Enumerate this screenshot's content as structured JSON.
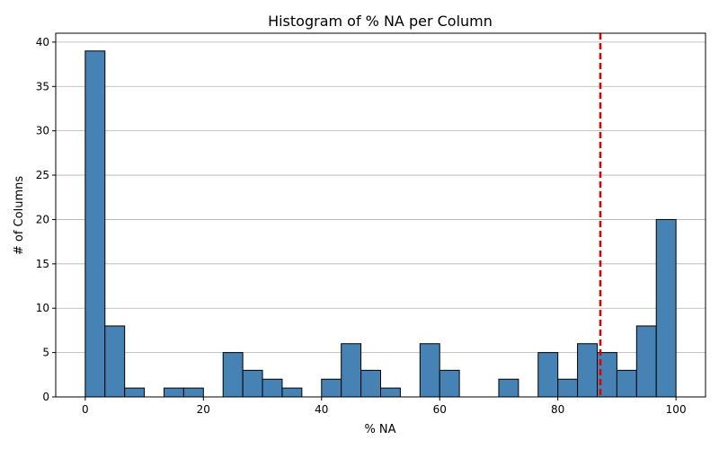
{
  "chart_data": {
    "type": "bar",
    "title": "Histogram of % NA per Column",
    "xlabel": "% NA",
    "ylabel": "# of Columns",
    "xlim": [
      -5,
      105
    ],
    "ylim": [
      0,
      41
    ],
    "xticks": [
      0,
      20,
      40,
      60,
      80,
      100
    ],
    "yticks": [
      0,
      5,
      10,
      15,
      20,
      25,
      30,
      35,
      40
    ],
    "grid": "horizontal",
    "bin_width": 3.3333,
    "bin_starts": [
      0,
      3.3333,
      6.6667,
      10,
      13.3333,
      16.6667,
      20,
      23.3333,
      26.6667,
      30,
      33.3333,
      36.6667,
      40,
      43.3333,
      46.6667,
      50,
      53.3333,
      56.6667,
      60,
      63.3333,
      66.6667,
      70,
      73.3333,
      76.6667,
      80,
      83.3333,
      86.6667,
      90,
      93.3333,
      96.6667
    ],
    "values": [
      39,
      8,
      1,
      0,
      1,
      1,
      0,
      5,
      3,
      2,
      1,
      0,
      2,
      6,
      3,
      1,
      0,
      6,
      3,
      0,
      0,
      2,
      0,
      5,
      2,
      6,
      5,
      3,
      8,
      20
    ],
    "bar_color": "#4682b4",
    "threshold_line": {
      "x": 87.2,
      "color": "#e00000",
      "style": "dashed"
    }
  }
}
